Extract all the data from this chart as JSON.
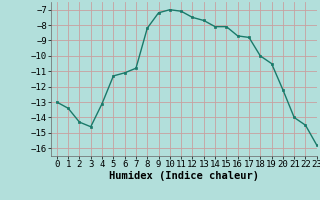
{
  "x": [
    0,
    1,
    2,
    3,
    4,
    5,
    6,
    7,
    8,
    9,
    10,
    11,
    12,
    13,
    14,
    15,
    16,
    17,
    18,
    19,
    20,
    21,
    22,
    23
  ],
  "y": [
    -13.0,
    -13.4,
    -14.3,
    -14.6,
    -13.1,
    -11.3,
    -11.1,
    -10.8,
    -8.2,
    -7.2,
    -7.0,
    -7.1,
    -7.5,
    -7.7,
    -8.1,
    -8.1,
    -8.7,
    -8.8,
    -10.0,
    -10.5,
    -12.2,
    -14.0,
    -14.5,
    -15.8
  ],
  "line_color": "#1a7a6a",
  "marker": "s",
  "marker_size": 2,
  "bg_color": "#b2dfdb",
  "grid_color_major": "#c8a0a0",
  "xlabel": "Humidex (Indice chaleur)",
  "xlim": [
    -0.5,
    23
  ],
  "ylim": [
    -16.5,
    -6.5
  ],
  "yticks": [
    -7,
    -8,
    -9,
    -10,
    -11,
    -12,
    -13,
    -14,
    -15,
    -16
  ],
  "xticks": [
    0,
    1,
    2,
    3,
    4,
    5,
    6,
    7,
    8,
    9,
    10,
    11,
    12,
    13,
    14,
    15,
    16,
    17,
    18,
    19,
    20,
    21,
    22,
    23
  ],
  "tick_fontsize": 6.5,
  "xlabel_fontsize": 7.5,
  "line_width": 1.0
}
